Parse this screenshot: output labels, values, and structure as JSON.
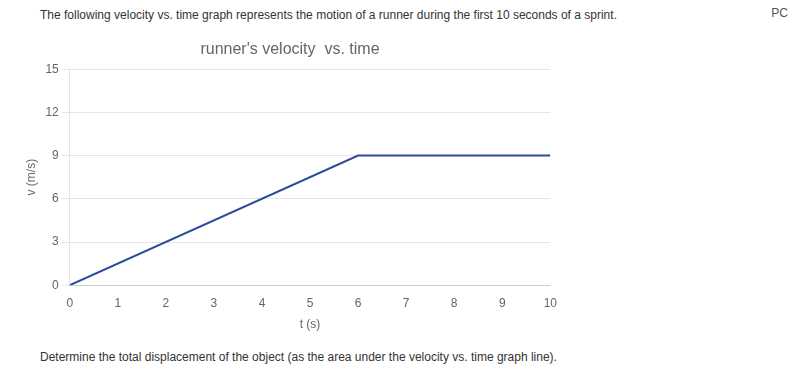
{
  "chart_data": {
    "type": "line",
    "title": "runner's velocity  vs. time",
    "x_label": "t (s)",
    "y_label": "v (m/s)",
    "x": [
      0,
      6,
      10
    ],
    "values": [
      0,
      9,
      9
    ],
    "color": "#2B4B9B",
    "xlim": [
      0,
      10
    ],
    "ylim": [
      0,
      15
    ],
    "xticks": [
      0,
      1,
      2,
      3,
      4,
      5,
      6,
      7,
      8,
      9,
      10
    ],
    "yticks": [
      0,
      3,
      6,
      9,
      12,
      15
    ],
    "grid": "y",
    "annotations": [
      "PC",
      "The following velocity vs. time graph represents the motion of a runner during the first 10 seconds of a sprint.",
      "Determine the total displacement of the object (as the area under the velocity vs. time graph line)."
    ]
  }
}
